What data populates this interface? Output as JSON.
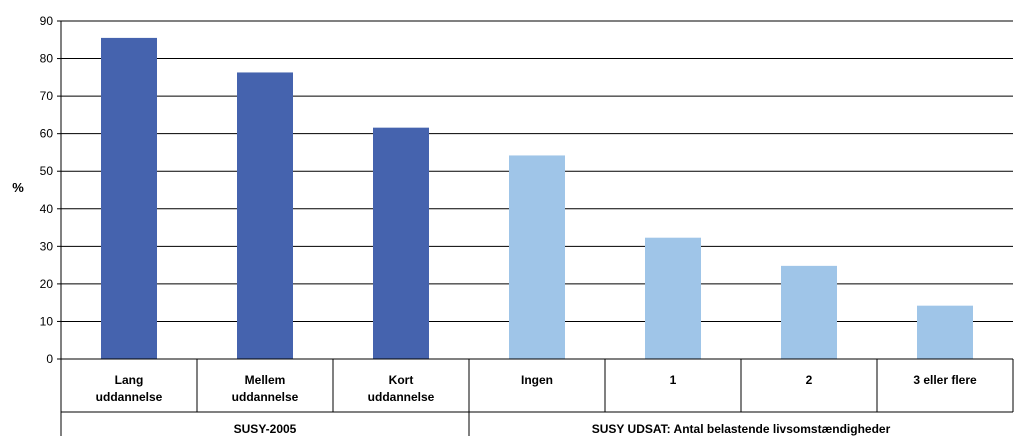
{
  "chart_data": {
    "type": "bar",
    "ylabel": "%",
    "ylim": [
      0,
      90
    ],
    "yticks": [
      0,
      10,
      20,
      30,
      40,
      50,
      60,
      70,
      80,
      90
    ],
    "grid": true,
    "categories": [
      [
        "Lang",
        "uddannelse"
      ],
      [
        "Mellem",
        "uddannelse"
      ],
      [
        "Kort",
        "uddannelse"
      ],
      [
        "Ingen"
      ],
      [
        "1"
      ],
      [
        "2"
      ],
      [
        "3 eller flere"
      ]
    ],
    "values": [
      85.5,
      76.3,
      61.6,
      54.2,
      32.3,
      24.8,
      14.2
    ],
    "bar_colors": [
      "#4563ae",
      "#4563ae",
      "#4563ae",
      "#9fc5e8",
      "#9fc5e8",
      "#9fc5e8",
      "#9fc5e8"
    ],
    "groups": [
      {
        "label": "SUSY-2005",
        "count": 3
      },
      {
        "label": "SUSY UDSAT: Antal belastende livsomstændigheder",
        "count": 4
      }
    ]
  }
}
